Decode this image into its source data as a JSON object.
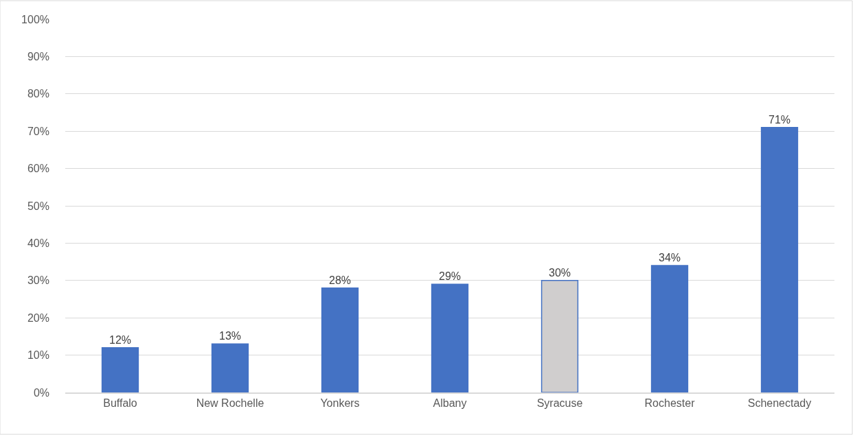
{
  "chart_data": {
    "type": "bar",
    "categories": [
      "Buffalo",
      "New Rochelle",
      "Yonkers",
      "Albany",
      "Syracuse",
      "Rochester",
      "Schenectady"
    ],
    "values": [
      12,
      13,
      28,
      29,
      30,
      34,
      71
    ],
    "colors": [
      "#4472c4",
      "#4472c4",
      "#4472c4",
      "#4472c4",
      "#d0cece",
      "#4472c4",
      "#4472c4"
    ],
    "value_labels": [
      "12%",
      "13%",
      "28%",
      "29%",
      "30%",
      "34%",
      "71%"
    ],
    "ylim": [
      0,
      100
    ],
    "yticks": [
      {
        "value": 0,
        "label": "0%"
      },
      {
        "value": 10,
        "label": "10%"
      },
      {
        "value": 20,
        "label": "20%"
      },
      {
        "value": 30,
        "label": "30%"
      },
      {
        "value": 40,
        "label": "40%"
      },
      {
        "value": 50,
        "label": "50%"
      },
      {
        "value": 60,
        "label": "60%"
      },
      {
        "value": 70,
        "label": "70%"
      },
      {
        "value": 80,
        "label": "80%"
      },
      {
        "value": 90,
        "label": "90%"
      },
      {
        "value": 100,
        "label": "100%"
      }
    ],
    "grid": "y"
  }
}
